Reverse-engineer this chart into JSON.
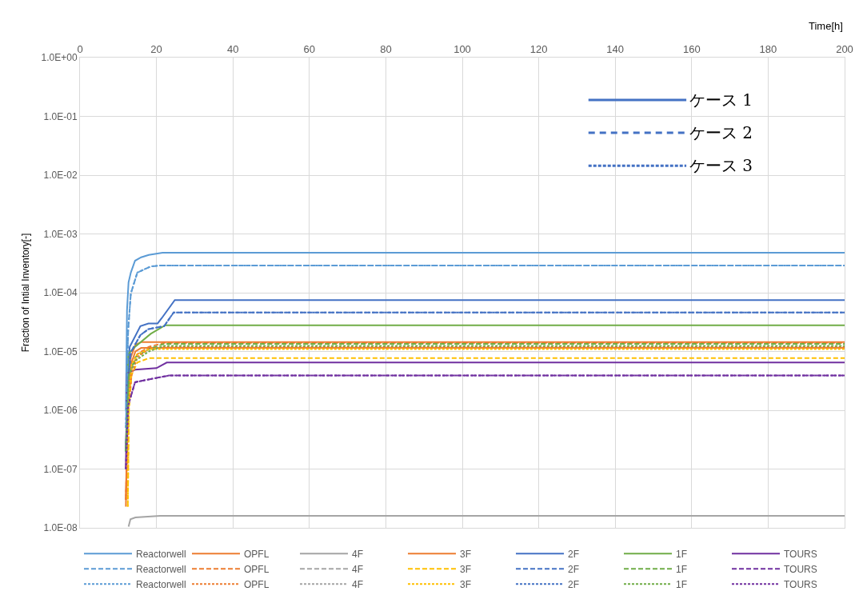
{
  "chart_data": {
    "type": "line",
    "xlabel": "Time[h]",
    "ylabel": "Fraction of Intial Inventory[-]",
    "xlim": [
      0,
      200
    ],
    "xticks": [
      0,
      20,
      40,
      60,
      80,
      100,
      120,
      140,
      160,
      180,
      200
    ],
    "ylim": [
      1e-08,
      1
    ],
    "yticks": [
      {
        "value": 1e-08,
        "label": "1.0E-08"
      },
      {
        "value": 1e-07,
        "label": "1.0E-07"
      },
      {
        "value": 1e-06,
        "label": "1.0E-06"
      },
      {
        "value": 1e-05,
        "label": "1.0E-05"
      },
      {
        "value": 0.0001,
        "label": "1.0E-04"
      },
      {
        "value": 0.001,
        "label": "1.0E-03"
      },
      {
        "value": 0.01,
        "label": "1.0E-02"
      },
      {
        "value": 0.1,
        "label": "1.0E-01"
      },
      {
        "value": 1,
        "label": "1.0E+00"
      }
    ],
    "log": "y",
    "grid": true,
    "legend": "bottom",
    "marker": "none",
    "annotations": [
      "ケース 1",
      "ケース 2",
      "ケース 3"
    ],
    "series": [
      {
        "name": "Reactorwell",
        "color": "#5b9bd5",
        "line_style": "solid",
        "x": [
          12,
          12.3,
          12.7,
          13.3,
          14.4,
          16,
          18,
          21.6,
          200
        ],
        "values": [
          1e-06,
          5e-05,
          0.00015,
          0.00022,
          0.00035,
          0.0004,
          0.00044,
          0.00048,
          0.00048
        ]
      },
      {
        "name": "OPFL",
        "color": "#ed7d31",
        "line_style": "solid",
        "x": [
          12,
          12.5,
          13.3,
          14.5,
          16,
          200
        ],
        "values": [
          3e-08,
          2e-06,
          8e-06,
          1.3e-05,
          1.45e-05,
          1.45e-05
        ]
      },
      {
        "name": "4F",
        "color": "#a5a5a5",
        "line_style": "solid",
        "x": [
          12.7,
          13.2,
          14.5,
          21,
          200
        ],
        "values": [
          1.05e-08,
          1.4e-08,
          1.5e-08,
          1.6e-08,
          1.6e-08
        ]
      },
      {
        "name": "3F",
        "color": "#ed7d31",
        "line_style": "solid",
        "x": [
          12,
          12.5,
          13.3,
          14.5,
          16,
          200
        ],
        "values": [
          2.3e-08,
          1.5e-06,
          6e-06,
          1e-05,
          1.15e-05,
          1.15e-05
        ]
      },
      {
        "name": "2F",
        "color": "#4472c4",
        "line_style": "solid",
        "x": [
          12,
          12.5,
          13,
          15.8,
          17.9,
          20.3,
          21.4,
          24.8,
          200
        ],
        "values": [
          2e-07,
          4e-06,
          1.2e-05,
          2.7e-05,
          3e-05,
          3e-05,
          3.7e-05,
          7.5e-05,
          7.5e-05
        ]
      },
      {
        "name": "1F",
        "color": "#70ad47",
        "line_style": "solid",
        "x": [
          12,
          12.6,
          14.4,
          18.5,
          22.3,
          200
        ],
        "values": [
          2e-07,
          9e-06,
          1.2e-05,
          2e-05,
          2.8e-05,
          2.8e-05
        ]
      },
      {
        "name": "TOURS",
        "color": "#7030a0",
        "line_style": "solid",
        "x": [
          12,
          12.3,
          14.4,
          20,
          22.7,
          200
        ],
        "values": [
          1e-07,
          4.2e-06,
          4.9e-06,
          5.2e-06,
          6.5e-06,
          6.5e-06
        ]
      },
      {
        "name": "Reactorwell",
        "color": "#5b9bd5",
        "line_style": "dashed",
        "x": [
          12,
          12.6,
          13.3,
          15,
          18.5,
          21,
          200
        ],
        "values": [
          5e-07,
          2.3e-05,
          9.7e-05,
          0.00022,
          0.00028,
          0.00029,
          0.00029
        ]
      },
      {
        "name": "OPFL",
        "color": "#ed7d31",
        "line_style": "dashed",
        "x": [
          12,
          12.6,
          13.5,
          15,
          18,
          22,
          200
        ],
        "values": [
          3e-08,
          1e-06,
          5e-06,
          9e-06,
          1.2e-05,
          1.4e-05,
          1.4e-05
        ]
      },
      {
        "name": "4F",
        "color": "#a5a5a5",
        "line_style": "dashed"
      },
      {
        "name": "3F",
        "color": "#ffc000",
        "line_style": "dashed",
        "x": [
          12.5,
          12.8,
          13.5,
          15,
          18,
          200
        ],
        "values": [
          2.3e-08,
          1e-06,
          4e-06,
          6.5e-06,
          7.7e-06,
          7.7e-06
        ]
      },
      {
        "name": "2F",
        "color": "#4472c4",
        "line_style": "dashed",
        "x": [
          12,
          12.6,
          13.3,
          15.8,
          17.9,
          22,
          24.5,
          200
        ],
        "values": [
          2e-07,
          3e-06,
          9.7e-06,
          1.9e-05,
          2.4e-05,
          2.7e-05,
          4.6e-05,
          4.6e-05
        ]
      },
      {
        "name": "1F",
        "color": "#70ad47",
        "line_style": "dashed",
        "x": [
          12,
          12.8,
          14.5,
          18,
          22,
          200
        ],
        "values": [
          2e-07,
          4e-06,
          8e-06,
          1.1e-05,
          1.35e-05,
          1.35e-05
        ]
      },
      {
        "name": "TOURS",
        "color": "#7030a0",
        "line_style": "dashed",
        "x": [
          12,
          12.6,
          14.4,
          18.5,
          23.3,
          200
        ],
        "values": [
          1e-07,
          1.2e-06,
          3e-06,
          3.4e-06,
          3.9e-06,
          3.9e-06
        ]
      },
      {
        "name": "Reactorwell",
        "color": "#5b9bd5",
        "line_style": "dotted",
        "x": [
          12,
          12.6,
          13.3,
          15,
          18.5,
          21,
          200
        ],
        "values": [
          5e-07,
          2.3e-05,
          9.7e-05,
          0.00022,
          0.00028,
          0.00029,
          0.00029
        ]
      },
      {
        "name": "OPFL",
        "color": "#ed7d31",
        "line_style": "dotted",
        "x": [
          12,
          12.6,
          13.5,
          15,
          18,
          22,
          200
        ],
        "values": [
          3e-08,
          1e-06,
          4e-06,
          8e-06,
          1.1e-05,
          1.2e-05,
          1.2e-05
        ]
      },
      {
        "name": "4F",
        "color": "#a5a5a5",
        "line_style": "dotted"
      },
      {
        "name": "3F",
        "color": "#ffc000",
        "line_style": "dotted",
        "x": [
          12.5,
          12.8,
          13.5,
          15,
          18,
          200
        ],
        "values": [
          2.3e-08,
          1.5e-06,
          6e-06,
          9e-06,
          1.1e-05,
          1.1e-05
        ]
      },
      {
        "name": "2F",
        "color": "#4472c4",
        "line_style": "dotted",
        "x": [
          12,
          12.6,
          13.3,
          15.8,
          17.9,
          22,
          24.5,
          200
        ],
        "values": [
          2e-07,
          3e-06,
          9.7e-06,
          1.9e-05,
          2.4e-05,
          2.7e-05,
          4.6e-05,
          4.6e-05
        ]
      },
      {
        "name": "1F",
        "color": "#70ad47",
        "line_style": "dotted",
        "x": [
          12,
          12.8,
          14.5,
          18,
          22,
          200
        ],
        "values": [
          2e-07,
          4e-06,
          7e-06,
          1e-05,
          1.25e-05,
          1.25e-05
        ]
      },
      {
        "name": "TOURS",
        "color": "#7030a0",
        "line_style": "dotted",
        "x": [
          12,
          12.6,
          14.4,
          18.5,
          23.3,
          200
        ],
        "values": [
          1e-07,
          1.2e-06,
          3e-06,
          3.4e-06,
          3.9e-06,
          3.9e-06
        ]
      }
    ]
  }
}
